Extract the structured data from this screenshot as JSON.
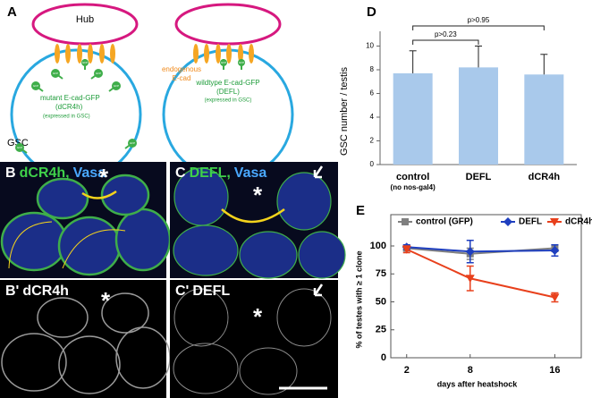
{
  "panel_a": {
    "label": "A",
    "hub": "Hub",
    "endogenous_lines": [
      "endogenous",
      "E-cad"
    ],
    "wildtype_lines": [
      "wildtype E-cad-GFP",
      "(DEFL)"
    ],
    "wildtype_note": "(expressed in GSC)",
    "mutant_lines": [
      "mutant E-cad-GFP",
      "(dCR4h)"
    ],
    "mutant_note": "(expressed in GSC)",
    "gsc": "GSC",
    "marker": "GFP"
  },
  "panel_b": {
    "label": "B",
    "stain": "dCR4h,",
    "counterstain": "Vasa",
    "asterisk": "*"
  },
  "panel_c": {
    "label": "C",
    "stain": "DEFL,",
    "counterstain": "Vasa",
    "asterisk": "*"
  },
  "panel_b2": {
    "label": "B'",
    "stain": "dCR4h",
    "asterisk": "*"
  },
  "panel_c2": {
    "label": "C'",
    "stain": "DEFL",
    "asterisk": "*"
  },
  "chart_data": [
    {
      "type": "bar",
      "panel_label": "D",
      "ylabel": "GSC number / testis",
      "categories": [
        "control",
        "DEFL",
        "dCR4h"
      ],
      "category_sublabels": [
        "(no nos-gal4)",
        null,
        null
      ],
      "values": [
        7.7,
        8.2,
        7.6
      ],
      "errors": [
        1.9,
        1.8,
        1.7
      ],
      "color": "#a9c9eb",
      "ylim": [
        0,
        12
      ],
      "yticks": [
        0,
        2,
        4,
        6,
        8,
        10
      ],
      "annotations": [
        "p>0.23",
        "p>0.95"
      ]
    },
    {
      "type": "line",
      "panel_label": "E",
      "xlabel": "days after heatshock",
      "ylabel": "% of testes with ≥ 1 clone",
      "x": [
        2,
        8,
        16
      ],
      "xlim": [
        0.5,
        18.5
      ],
      "xticks": [
        2,
        8,
        16
      ],
      "ylim": [
        0,
        128
      ],
      "yticks": [
        0,
        25,
        50,
        75,
        100
      ],
      "series": [
        {
          "name": "control (GFP)",
          "color": "#808080",
          "marker": "square",
          "values": [
            98,
            93,
            98
          ],
          "errors": [
            2,
            5,
            3
          ]
        },
        {
          "name": "DEFL",
          "color": "#1f3fbf",
          "marker": "diamond",
          "values": [
            99,
            95,
            96
          ],
          "errors": [
            2,
            10,
            5
          ]
        },
        {
          "name": "dCR4h",
          "color": "#e8401c",
          "marker": "triangle",
          "values": [
            97,
            71,
            54
          ],
          "errors": [
            3,
            11,
            4
          ]
        }
      ]
    }
  ]
}
